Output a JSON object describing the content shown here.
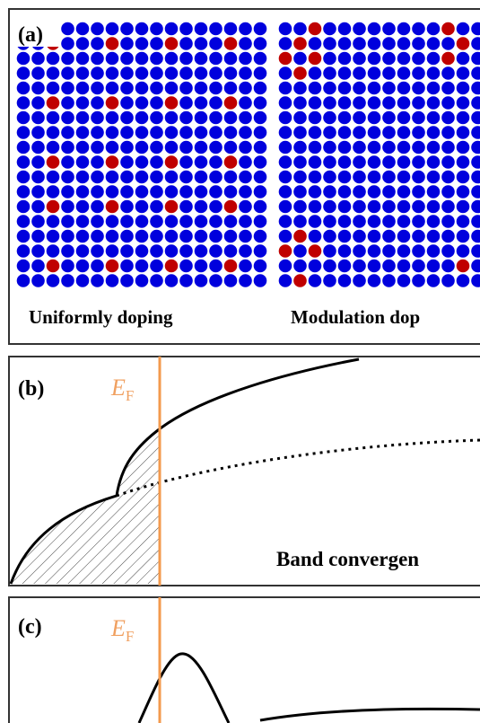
{
  "panels": [
    {
      "label": "(a)",
      "captions": [
        "Uniformly doping",
        "Modulation dop"
      ]
    },
    {
      "label": "(b)",
      "fermi": {
        "symbol": "E",
        "subscript": "F"
      },
      "caption": "Band convergen"
    },
    {
      "label": "(c)",
      "fermi": {
        "symbol": "E",
        "subscript": "F"
      }
    }
  ]
}
